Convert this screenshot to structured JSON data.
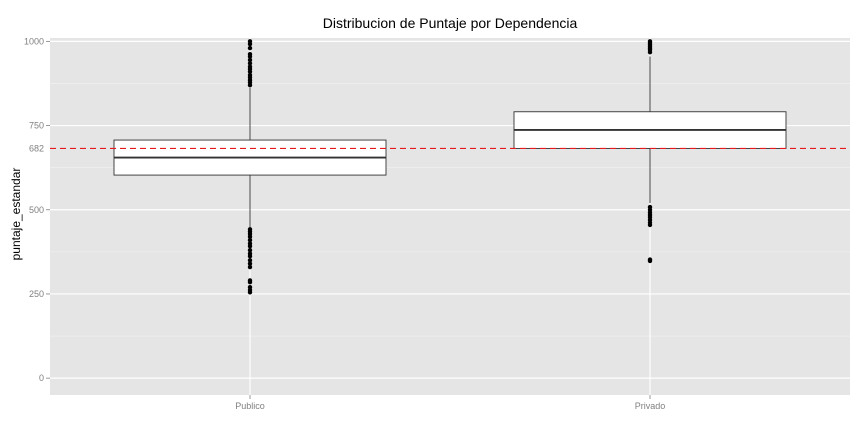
{
  "chart_data": {
    "type": "boxplot",
    "title": "Distribucion de Puntaje por Dependencia",
    "xlabel": "",
    "ylabel": "puntaje_estandar",
    "ylim": [
      -50,
      1010
    ],
    "yticks": [
      0,
      250,
      500,
      750,
      1000
    ],
    "grid": true,
    "reference_line": {
      "value": 682,
      "label": "682",
      "color": "#e41a1c",
      "style": "dashed"
    },
    "categories": [
      "Publico",
      "Privado"
    ],
    "boxes": [
      {
        "category": "Publico",
        "q1": 603,
        "median": 655,
        "q3": 707,
        "whisker_low": 447,
        "whisker_high": 862,
        "outliers": [
          255,
          262,
          270,
          285,
          290,
          330,
          340,
          350,
          362,
          370,
          380,
          392,
          400,
          410,
          420,
          428,
          435,
          442,
          870,
          878,
          885,
          893,
          900,
          910,
          918,
          925,
          935,
          945,
          955,
          962,
          980,
          992,
          1000
        ]
      },
      {
        "category": "Privado",
        "q1": 682,
        "median": 737,
        "q3": 791,
        "whisker_low": 520,
        "whisker_high": 955,
        "outliers": [
          348,
          352,
          455,
          462,
          470,
          478,
          485,
          492,
          500,
          508,
          968,
          975,
          980,
          985,
          990,
          995,
          1000
        ]
      }
    ]
  }
}
